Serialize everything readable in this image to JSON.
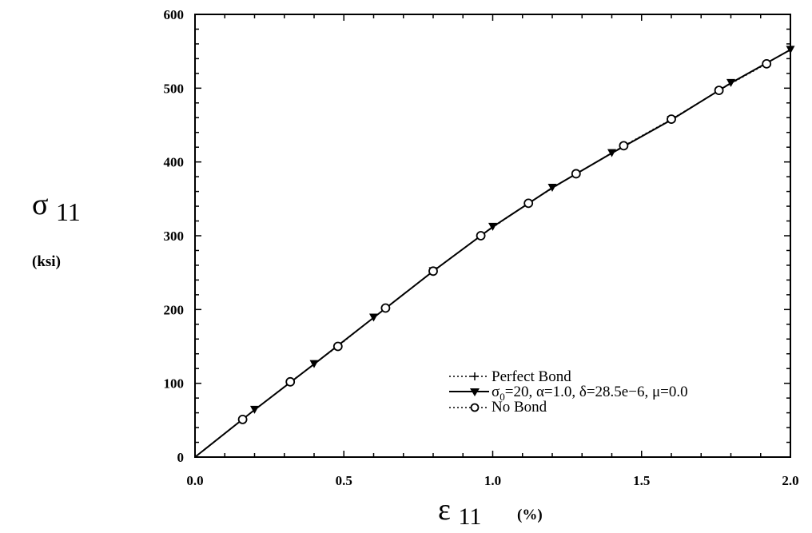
{
  "chart_data": {
    "type": "line",
    "xlim": [
      0.0,
      2.0
    ],
    "ylim": [
      0,
      600
    ],
    "x_ticks": [
      "0.0",
      "0.5",
      "1.0",
      "1.5",
      "2.0"
    ],
    "y_ticks": [
      "0",
      "100",
      "200",
      "300",
      "400",
      "500",
      "600"
    ],
    "x_tick_values": [
      0.0,
      0.5,
      1.0,
      1.5,
      2.0
    ],
    "y_tick_values": [
      0,
      100,
      200,
      300,
      400,
      500,
      600
    ],
    "xlabel_symbol": "ε",
    "xlabel_subscript": "11",
    "xlabel_unit": "(%)",
    "ylabel_symbol": "σ",
    "ylabel_subscript": "11",
    "ylabel_unit": "(ksi)",
    "grid": false,
    "legend_position": "bottom-right",
    "series": [
      {
        "name": "Perfect Bond",
        "line_style": "dotted",
        "marker": "cross",
        "x": [
          0.0,
          0.2,
          0.4,
          0.6,
          0.8,
          1.0,
          1.2,
          1.4,
          1.6,
          1.8,
          2.0
        ],
        "y": [
          0,
          64,
          126,
          189,
          252,
          312,
          365,
          412,
          457,
          507,
          552
        ],
        "marker_x": [
          0.8,
          1.6
        ],
        "marker_y": [
          252,
          457
        ]
      },
      {
        "name_parts": [
          "σ",
          "0",
          "=20, α=1.0, δ=28.5e−6, μ=0.0"
        ],
        "line_style": "solid",
        "marker": "triangle-down",
        "x": [
          0.0,
          0.2,
          0.4,
          0.6,
          0.8,
          1.0,
          1.2,
          1.4,
          1.6,
          1.8,
          2.0
        ],
        "y": [
          0,
          64,
          126,
          189,
          252,
          312,
          365,
          412,
          457,
          507,
          552
        ],
        "marker_x": [
          0.2,
          0.4,
          0.6,
          0.8,
          1.0,
          1.2,
          1.4,
          1.6,
          1.8,
          2.0
        ],
        "marker_y": [
          64,
          126,
          189,
          252,
          312,
          365,
          412,
          457,
          507,
          552
        ]
      },
      {
        "name": "No Bond",
        "line_style": "dotted",
        "marker": "circle",
        "x": [
          0.0,
          0.16,
          0.32,
          0.48,
          0.64,
          0.8,
          0.96,
          1.12,
          1.28,
          1.44,
          1.6,
          1.76,
          1.92
        ],
        "y": [
          0,
          51,
          102,
          150,
          202,
          252,
          300,
          344,
          384,
          422,
          458,
          497,
          533
        ],
        "marker_x": [
          0.16,
          0.32,
          0.48,
          0.64,
          0.8,
          0.96,
          1.12,
          1.28,
          1.44,
          1.6,
          1.76,
          1.92
        ],
        "marker_y": [
          51,
          102,
          150,
          202,
          252,
          300,
          344,
          384,
          422,
          458,
          497,
          533
        ]
      }
    ]
  }
}
